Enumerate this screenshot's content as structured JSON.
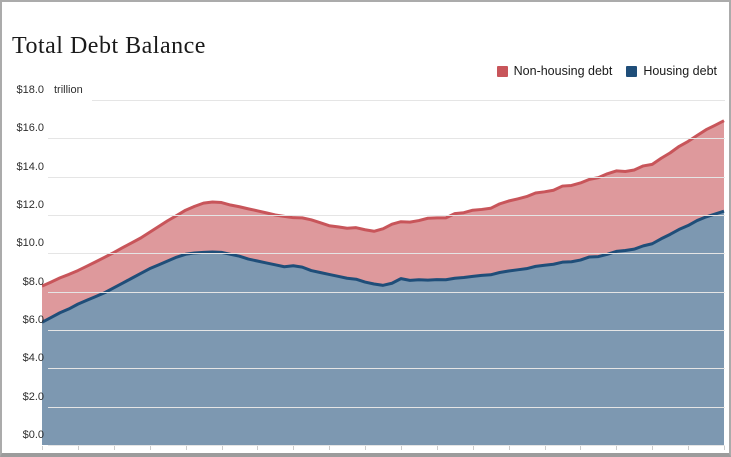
{
  "header": {
    "title": "Total Debt Balance"
  },
  "legend": [
    {
      "label": "Non-housing debt",
      "color": "#c8555a"
    },
    {
      "label": "Housing debt",
      "color": "#1f4e79"
    }
  ],
  "y_axis": {
    "unit_label": "trillion",
    "ticks": [
      {
        "label": "$18.0",
        "value": 18
      },
      {
        "label": "$16.0",
        "value": 16
      },
      {
        "label": "$14.0",
        "value": 14
      },
      {
        "label": "$12.0",
        "value": 12
      },
      {
        "label": "$10.0",
        "value": 10
      },
      {
        "label": "$8.0",
        "value": 8
      },
      {
        "label": "$6.0",
        "value": 6
      },
      {
        "label": "$4.0",
        "value": 4
      },
      {
        "label": "$2.0",
        "value": 2
      },
      {
        "label": "$0.0",
        "value": 0
      }
    ]
  },
  "x_axis": {
    "tick_count": 20,
    "note": "unlabeled year tick marks; x tick labels are cropped out of the screenshot"
  },
  "chart_data": {
    "type": "area",
    "stacked": true,
    "title": "Total Debt Balance",
    "unit": "USD trillions",
    "ylabel": "$ trillion",
    "ylim": [
      0,
      18
    ],
    "grid": true,
    "legend_position": "top-right",
    "x_frequency": "quarterly",
    "x_start_estimated": "2004 Q1",
    "x_end_estimated": "2023 Q1",
    "series": [
      {
        "name": "Housing debt",
        "color": "#1f4e79",
        "fill": "rgba(31,78,121,0.58)",
        "values": [
          6.4,
          6.65,
          6.9,
          7.1,
          7.35,
          7.55,
          7.75,
          7.95,
          8.2,
          8.45,
          8.7,
          8.95,
          9.2,
          9.4,
          9.6,
          9.8,
          9.95,
          10.02,
          10.05,
          10.07,
          10.05,
          9.95,
          9.85,
          9.7,
          9.6,
          9.5,
          9.4,
          9.3,
          9.35,
          9.28,
          9.1,
          9.0,
          8.9,
          8.8,
          8.7,
          8.65,
          8.5,
          8.4,
          8.33,
          8.44,
          8.68,
          8.59,
          8.62,
          8.6,
          8.63,
          8.62,
          8.7,
          8.74,
          8.8,
          8.85,
          8.88,
          9.0,
          9.08,
          9.14,
          9.2,
          9.32,
          9.38,
          9.43,
          9.54,
          9.56,
          9.65,
          9.81,
          9.83,
          9.95,
          10.1,
          10.15,
          10.22,
          10.39,
          10.5,
          10.76,
          10.99,
          11.25,
          11.45,
          11.71,
          11.9,
          12.05,
          12.2
        ]
      },
      {
        "name": "Non-housing debt",
        "color": "#c8555a",
        "fill": "rgba(200,85,90,0.6)",
        "values": [
          1.89,
          1.85,
          1.82,
          1.8,
          1.75,
          1.78,
          1.81,
          1.85,
          1.84,
          1.85,
          1.85,
          1.85,
          1.9,
          2.0,
          2.1,
          2.17,
          2.3,
          2.43,
          2.57,
          2.61,
          2.6,
          2.57,
          2.58,
          2.62,
          2.62,
          2.61,
          2.6,
          2.63,
          2.51,
          2.57,
          2.65,
          2.6,
          2.54,
          2.58,
          2.61,
          2.69,
          2.73,
          2.75,
          2.95,
          3.08,
          2.97,
          3.04,
          3.09,
          3.23,
          3.22,
          3.23,
          3.37,
          3.38,
          3.45,
          3.44,
          3.47,
          3.58,
          3.65,
          3.7,
          3.76,
          3.83,
          3.83,
          3.86,
          3.97,
          3.98,
          4.02,
          4.05,
          4.12,
          4.2,
          4.2,
          4.12,
          4.13,
          4.17,
          4.14,
          4.2,
          4.25,
          4.33,
          4.39,
          4.44,
          4.55,
          4.63,
          4.72
        ]
      }
    ],
    "stack_note": "Total debt (top of red band) = Housing debt + Non-housing debt; ~8.3 at left edge, peak ~12.7 (2008), trough ~11.15 (2013), ~16.9 at right edge"
  }
}
